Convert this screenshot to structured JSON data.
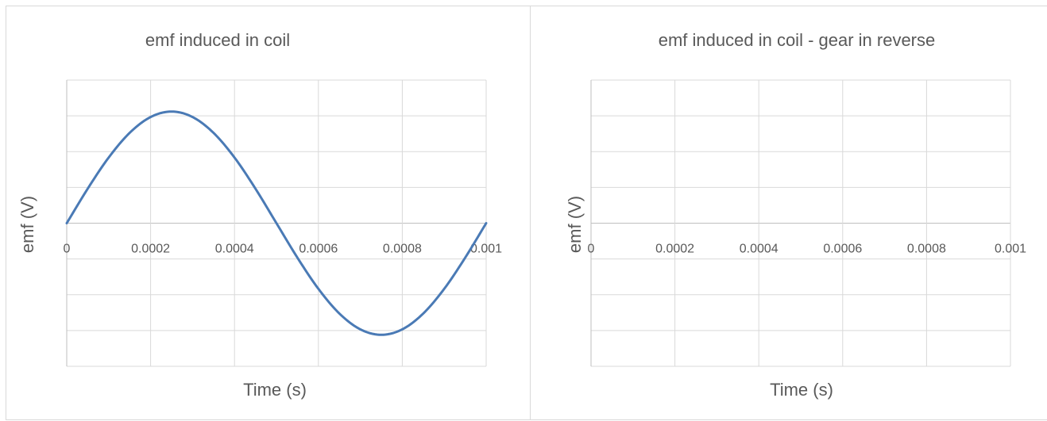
{
  "chart_data": [
    {
      "type": "line",
      "title": "emf induced in coil",
      "xlabel": "Time (s)",
      "ylabel": "emf (V)",
      "x_ticks": [
        "0",
        "0.0002",
        "0.0004",
        "0.0006",
        "0.0008",
        "0.001"
      ],
      "xlim": [
        0,
        0.001
      ],
      "grid": true,
      "series": [
        {
          "color": "#4a7ab5",
          "x": [
            0,
            5e-05,
            0.0001,
            0.00015,
            0.0002,
            0.00025,
            0.0003,
            0.00035,
            0.0004,
            0.00045,
            0.0005,
            0.00055,
            0.0006,
            0.00065,
            0.0007,
            0.00075,
            0.0008,
            0.00085,
            0.0009,
            0.00095,
            0.001
          ],
          "y": [
            0,
            0.309,
            0.588,
            0.809,
            0.951,
            1.0,
            0.951,
            0.809,
            0.588,
            0.309,
            0,
            -0.309,
            -0.588,
            -0.809,
            -0.951,
            -1.0,
            -0.951,
            -0.809,
            -0.588,
            -0.309,
            0
          ]
        }
      ]
    },
    {
      "type": "line",
      "title": "emf induced in coil - gear in reverse",
      "xlabel": "Time (s)",
      "ylabel": "emf (V)",
      "x_ticks": [
        "0",
        "0.0002",
        "0.0004",
        "0.0006",
        "0.0008",
        "0.001"
      ],
      "xlim": [
        0,
        0.001
      ],
      "grid": true,
      "series": []
    }
  ]
}
